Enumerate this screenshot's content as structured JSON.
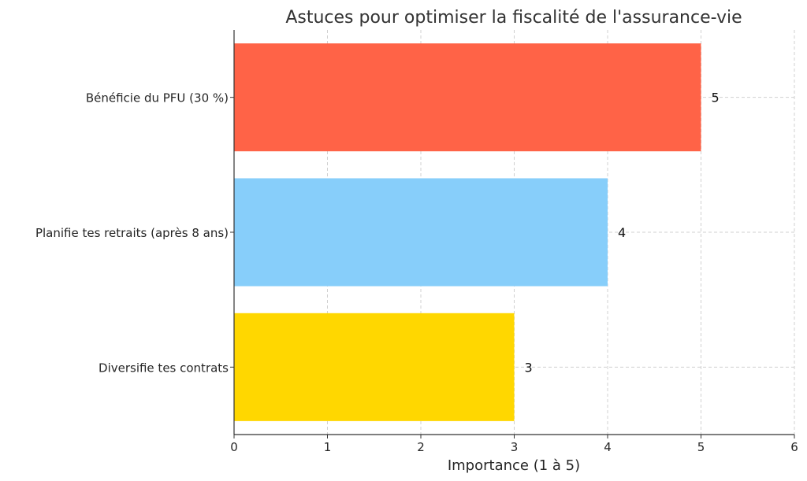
{
  "chart_data": {
    "type": "bar",
    "orientation": "horizontal",
    "title": "Astuces pour optimiser la fiscalité de l'assurance-vie",
    "xlabel": "Importance (1 à 5)",
    "ylabel": "",
    "xlim": [
      0,
      6
    ],
    "xticks": [
      "0",
      "1",
      "2",
      "3",
      "4",
      "5",
      "6"
    ],
    "grid": true,
    "categories": [
      "Bénéficie du PFU (30 %)",
      "Planifie tes retraits (après 8 ans)",
      "Diversifie tes contrats"
    ],
    "values": [
      5,
      4,
      3
    ],
    "value_labels": [
      "5",
      "4",
      "3"
    ],
    "colors": [
      "#FF6347",
      "#87CEFA",
      "#FFD700"
    ]
  }
}
